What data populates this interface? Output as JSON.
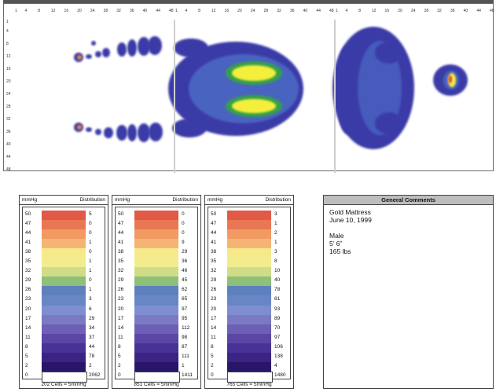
{
  "map": {
    "x_ticks": [
      "1",
      "4",
      "8",
      "12",
      "16",
      "20",
      "24",
      "28",
      "32",
      "36",
      "40",
      "44",
      "48"
    ],
    "y_ticks": [
      "1",
      "4",
      "8",
      "12",
      "16",
      "20",
      "24",
      "28",
      "32",
      "36",
      "40",
      "44",
      "48"
    ],
    "colors": {
      "low": "#3a3aa8",
      "mid_blue": "#4a64c0",
      "green": "#35a04a",
      "yellow": "#f4ef3a",
      "red": "#e23a2a",
      "orange": "#f08a2a"
    }
  },
  "legend": {
    "colors": [
      "#e05a45",
      "#ea7754",
      "#f19a62",
      "#f6b474",
      "#f6e98a",
      "#f1ed8e",
      "#d0dc88",
      "#8ec079",
      "#5e80bd",
      "#6886c6",
      "#7e8ed0",
      "#7c79c4",
      "#6c5fb5",
      "#5a46a4",
      "#493295",
      "#3a2383",
      "#281668",
      "#ffffff"
    ],
    "values": [
      "50",
      "47",
      "44",
      "41",
      "38",
      "35",
      "32",
      "29",
      "26",
      "23",
      "20",
      "17",
      "14",
      "11",
      "8",
      "5",
      "2",
      "0"
    ],
    "unit_label": "mmHg",
    "dist_label": "Distribution",
    "panels": [
      {
        "distribution": [
          "5",
          "0",
          "0",
          "1",
          "0",
          "1",
          "1",
          "0",
          "1",
          "3",
          "6",
          "29",
          "34",
          "37",
          "44",
          "78",
          "2",
          "2062"
        ],
        "footer": "202 Cells = 5mmHg"
      },
      {
        "distribution": [
          "0",
          "0",
          "0",
          "9",
          "29",
          "36",
          "46",
          "45",
          "62",
          "65",
          "97",
          "95",
          "112",
          "98",
          "87",
          "111",
          "1",
          "1411"
        ],
        "footer": "851 Cells = 5mmHg"
      },
      {
        "distribution": [
          "3",
          "1",
          "2",
          "1",
          "3",
          "8",
          "10",
          "40",
          "78",
          "81",
          "93",
          "89",
          "70",
          "97",
          "106",
          "138",
          "4",
          "1480"
        ],
        "footer": "765 Cells = 5mmHg"
      }
    ]
  },
  "comments": {
    "header": "General Comments",
    "lines": [
      "Gold Mattress",
      "June 10, 1999",
      "",
      "Male",
      "5’ 6”",
      "165 lbs"
    ]
  }
}
